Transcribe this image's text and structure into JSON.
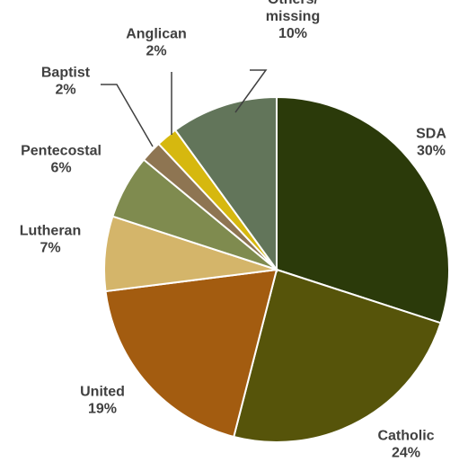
{
  "chart_data": {
    "type": "pie",
    "title": "",
    "slices": [
      {
        "label": "SDA",
        "value_label": "30%",
        "value": 30,
        "color": "#2b3a0a"
      },
      {
        "label": "Catholic",
        "value_label": "24%",
        "value": 24,
        "color": "#56540a"
      },
      {
        "label": "United",
        "value_label": "19%",
        "value": 19,
        "color": "#a35c10"
      },
      {
        "label": "Lutheran",
        "value_label": "7%",
        "value": 7,
        "color": "#d4b56a"
      },
      {
        "label": "Pentecostal",
        "value_label": "6%",
        "value": 6,
        "color": "#7f8b4f"
      },
      {
        "label": "Baptist",
        "value_label": "2%",
        "value": 2,
        "color": "#8e7552"
      },
      {
        "label": "Anglican",
        "value_label": "2%",
        "value": 2,
        "color": "#d6b80f"
      },
      {
        "label": "Others/ missing",
        "value_label": "10%",
        "value": 10,
        "color": "#62755a"
      }
    ],
    "legend": "none",
    "data_labels": "outside"
  }
}
